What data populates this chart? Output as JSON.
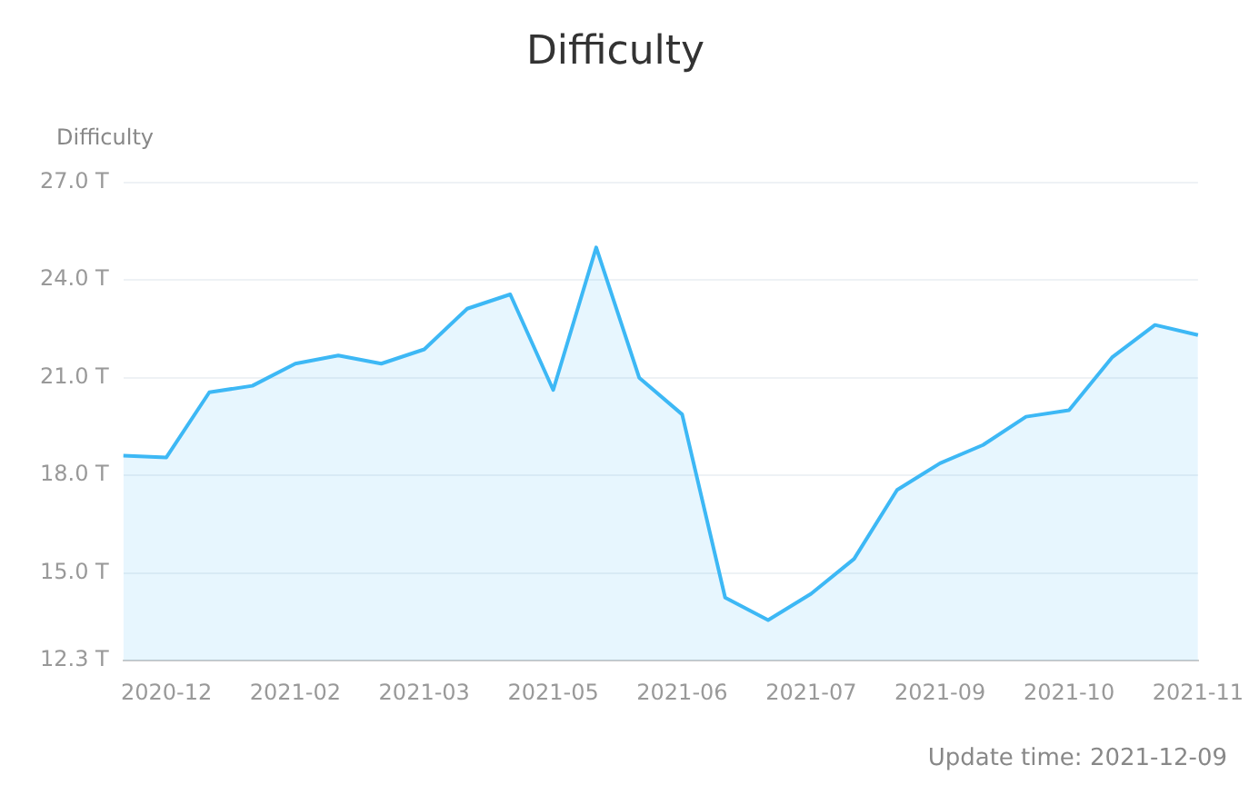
{
  "chart_data": {
    "type": "area",
    "title": "Difficulty",
    "ylabel": "Difficulty",
    "categories": [
      null,
      "2020-12",
      null,
      null,
      "2021-02",
      null,
      null,
      "2021-03",
      null,
      null,
      "2021-05",
      null,
      null,
      "2021-06",
      null,
      null,
      "2021-07",
      null,
      null,
      "2021-09",
      null,
      null,
      "2021-10",
      null,
      null,
      "2021-11"
    ],
    "series": [
      {
        "color": "#3db8f5",
        "values": [
          18.6,
          18.55,
          20.55,
          20.75,
          21.43,
          21.68,
          21.43,
          21.87,
          23.12,
          23.56,
          20.62,
          25.0,
          21.0,
          19.87,
          14.24,
          13.55,
          14.36,
          15.43,
          17.55,
          18.37,
          18.93,
          19.8,
          20.0,
          21.62,
          22.62,
          22.31
        ]
      }
    ],
    "ylim": [
      12.3,
      27.0
    ],
    "yticks": [
      {
        "value": 12.3,
        "label": "12.3 T"
      },
      {
        "value": 15,
        "label": "15.0 T"
      },
      {
        "value": 18,
        "label": "18.0 T"
      },
      {
        "value": 21,
        "label": "21.0 T"
      },
      {
        "value": 24,
        "label": "24.0 T"
      },
      {
        "value": 27,
        "label": "27.0 T"
      }
    ],
    "grid": "y",
    "legend": false,
    "marker": "none",
    "line_style": "solid",
    "annotations": [
      "Update time: 2021-12-09"
    ]
  }
}
